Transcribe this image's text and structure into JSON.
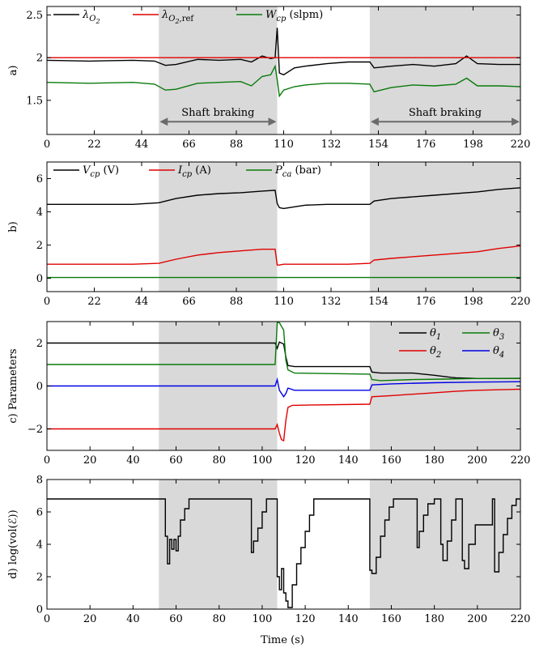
{
  "figure": {
    "xlabel": "Time (s)",
    "shaded_intervals": [
      [
        52,
        107
      ],
      [
        150,
        220
      ]
    ],
    "colors": {
      "black": "#000000",
      "red": "#e00000",
      "green": "#0a7a0a",
      "blue": "#0000e6",
      "shade": "#d9d9d9"
    }
  },
  "chart_data": [
    {
      "type": "line",
      "panel_label": "a)",
      "ylim": [
        1.1,
        2.6
      ],
      "yticks": [
        "1.5",
        "2",
        "2.5"
      ],
      "yticks_values": [
        1.5,
        2,
        2.5
      ],
      "xlim": [
        0,
        220
      ],
      "xticks": [
        "0",
        "22",
        "44",
        "66",
        "88",
        "110",
        "132",
        "154",
        "176",
        "198",
        "220"
      ],
      "legend_pos": "top-left",
      "series": [
        {
          "name": "λ_O2",
          "legend_main": "λ",
          "legend_sub": "O",
          "legend_subsub": "2",
          "color": "#000000",
          "x": [
            0,
            20,
            40,
            50,
            55,
            60,
            70,
            80,
            90,
            95,
            100,
            104,
            106,
            107,
            108,
            110,
            115,
            120,
            130,
            140,
            150,
            152,
            160,
            170,
            180,
            190,
            195,
            200,
            210,
            220
          ],
          "y": [
            1.97,
            1.96,
            1.97,
            1.96,
            1.91,
            1.92,
            1.98,
            1.97,
            1.98,
            1.95,
            2.02,
            1.99,
            2.0,
            2.35,
            1.82,
            1.8,
            1.88,
            1.9,
            1.93,
            1.95,
            1.95,
            1.88,
            1.9,
            1.92,
            1.9,
            1.93,
            2.02,
            1.93,
            1.92,
            1.92
          ]
        },
        {
          "name": "λ_O2,ref",
          "legend_main": "λ",
          "legend_sub": "O",
          "legend_subsub": "2",
          "legend_subtail": ",ref",
          "color": "#e00000",
          "x": [
            0,
            220
          ],
          "y": [
            2.0,
            2.0
          ]
        },
        {
          "name": "W_cp (slpm)",
          "legend_main": "W",
          "legend_sub": "cp",
          "legend_tail": " (slpm)",
          "color": "#0a7a0a",
          "x": [
            0,
            20,
            40,
            50,
            55,
            60,
            70,
            80,
            90,
            95,
            100,
            104,
            106,
            107,
            108,
            110,
            115,
            120,
            130,
            140,
            150,
            152,
            160,
            170,
            180,
            190,
            195,
            200,
            210,
            220
          ],
          "y": [
            1.71,
            1.7,
            1.71,
            1.69,
            1.62,
            1.63,
            1.7,
            1.71,
            1.72,
            1.67,
            1.78,
            1.8,
            1.9,
            1.74,
            1.55,
            1.62,
            1.66,
            1.68,
            1.7,
            1.7,
            1.69,
            1.6,
            1.65,
            1.68,
            1.67,
            1.69,
            1.76,
            1.67,
            1.67,
            1.66
          ]
        }
      ],
      "annotations": [
        {
          "text": "Shaft braking",
          "x0": 52,
          "x1": 107,
          "y": 1.25
        },
        {
          "text": "Shaft braking",
          "x0": 150,
          "x1": 220,
          "y": 1.25
        }
      ]
    },
    {
      "type": "line",
      "panel_label": "b)",
      "ylim": [
        -0.8,
        7.0
      ],
      "yticks": [
        "0",
        "2",
        "4",
        "6"
      ],
      "yticks_values": [
        0,
        2,
        4,
        6
      ],
      "xlim": [
        0,
        220
      ],
      "xticks": [
        "0",
        "22",
        "44",
        "66",
        "88",
        "110",
        "132",
        "154",
        "176",
        "198",
        "220"
      ],
      "legend_pos": "top-left",
      "series": [
        {
          "name": "V_cp (V)",
          "legend_main": "V",
          "legend_sub": "cp",
          "legend_tail": " (V)",
          "color": "#000000",
          "x": [
            0,
            40,
            52,
            60,
            70,
            80,
            90,
            100,
            106,
            107,
            108,
            110,
            120,
            130,
            140,
            150,
            152,
            160,
            180,
            200,
            210,
            220
          ],
          "y": [
            4.45,
            4.45,
            4.55,
            4.8,
            5.0,
            5.1,
            5.15,
            5.25,
            5.3,
            4.5,
            4.25,
            4.2,
            4.4,
            4.45,
            4.45,
            4.45,
            4.65,
            4.8,
            5.0,
            5.2,
            5.35,
            5.45
          ]
        },
        {
          "name": "I_cp (A)",
          "legend_main": "I",
          "legend_sub": "cp",
          "legend_tail": " (A)",
          "color": "#e00000",
          "x": [
            0,
            40,
            52,
            60,
            70,
            80,
            90,
            100,
            106,
            107,
            108,
            110,
            120,
            140,
            150,
            152,
            160,
            180,
            200,
            210,
            220
          ],
          "y": [
            0.85,
            0.85,
            0.9,
            1.15,
            1.4,
            1.55,
            1.65,
            1.75,
            1.75,
            0.8,
            0.8,
            0.85,
            0.85,
            0.85,
            0.9,
            1.1,
            1.2,
            1.4,
            1.6,
            1.8,
            1.95
          ]
        },
        {
          "name": "P_ca (bar)",
          "legend_main": "P",
          "legend_sub": "ca",
          "legend_tail": " (bar)",
          "color": "#0a7a0a",
          "x": [
            0,
            220
          ],
          "y": [
            0.05,
            0.05
          ]
        }
      ]
    },
    {
      "type": "line",
      "panel_label": "c)",
      "ylabel": "Parameters",
      "ylim": [
        -3.0,
        3.0
      ],
      "yticks": [
        "−2",
        "0",
        "2"
      ],
      "yticks_values": [
        -2,
        0,
        2
      ],
      "xlim": [
        0,
        220
      ],
      "xticks": [
        "0",
        "20",
        "40",
        "60",
        "80",
        "100",
        "120",
        "140",
        "160",
        "180",
        "200",
        "220"
      ],
      "legend_pos": "top-right",
      "series": [
        {
          "name": "θ1",
          "legend_main": "θ",
          "legend_sub": "1",
          "color": "#000000",
          "x": [
            0,
            106,
            107,
            108,
            110,
            111,
            112,
            115,
            150,
            151,
            155,
            170,
            180,
            188,
            190,
            200,
            220
          ],
          "y": [
            2.0,
            2.0,
            1.75,
            2.05,
            1.95,
            1.35,
            0.95,
            0.9,
            0.9,
            0.65,
            0.6,
            0.6,
            0.5,
            0.4,
            0.38,
            0.35,
            0.35
          ]
        },
        {
          "name": "θ3",
          "legend_main": "θ",
          "legend_sub": "3",
          "color": "#0a7a0a",
          "x": [
            0,
            106,
            107,
            108,
            110,
            111,
            112,
            115,
            150,
            151,
            155,
            170,
            185,
            200,
            220
          ],
          "y": [
            1.0,
            1.0,
            2.95,
            2.95,
            2.6,
            1.2,
            0.75,
            0.6,
            0.55,
            0.3,
            0.25,
            0.3,
            0.32,
            0.35,
            0.36
          ]
        },
        {
          "name": "θ2",
          "legend_main": "θ",
          "legend_sub": "2",
          "color": "#e00000",
          "x": [
            0,
            106,
            107,
            108,
            109,
            110,
            111,
            112,
            114,
            150,
            151,
            160,
            175,
            190,
            200,
            220
          ],
          "y": [
            -2.0,
            -2.0,
            -1.8,
            -2.2,
            -2.5,
            -2.55,
            -1.6,
            -1.0,
            -0.9,
            -0.85,
            -0.5,
            -0.45,
            -0.35,
            -0.25,
            -0.2,
            -0.15
          ]
        },
        {
          "name": "θ4",
          "legend_main": "θ",
          "legend_sub": "4",
          "color": "#0000e6",
          "x": [
            0,
            106,
            107,
            108,
            110,
            111,
            112,
            115,
            150,
            151,
            160,
            180,
            200,
            220
          ],
          "y": [
            0.0,
            0.0,
            0.3,
            -0.2,
            -0.5,
            -0.35,
            -0.1,
            -0.2,
            -0.2,
            0.05,
            0.1,
            0.15,
            0.18,
            0.2
          ]
        }
      ]
    },
    {
      "type": "line",
      "panel_label": "d)",
      "ylabel": "log(vol(ℰ))",
      "ylim": [
        0,
        8
      ],
      "yticks": [
        "0",
        "2",
        "4",
        "6",
        "8"
      ],
      "yticks_values": [
        0,
        2,
        4,
        6,
        8
      ],
      "xlim": [
        0,
        220
      ],
      "xticks": [
        "0",
        "20",
        "40",
        "60",
        "80",
        "100",
        "120",
        "140",
        "160",
        "180",
        "200",
        "220"
      ],
      "xlabel": "Time (s)",
      "series": [
        {
          "name": "log(vol(ℰ))",
          "color": "#000000",
          "x": [
            0,
            55,
            55,
            56,
            56,
            57,
            57,
            58,
            58,
            59,
            59,
            60,
            60,
            61,
            61,
            62,
            62,
            64,
            64,
            66,
            66,
            95,
            95,
            96,
            96,
            98,
            98,
            100,
            100,
            102,
            102,
            107,
            107,
            108,
            108,
            109,
            109,
            110,
            110,
            111,
            111,
            112,
            112,
            114,
            114,
            116,
            116,
            118,
            118,
            120,
            120,
            122,
            122,
            124,
            124,
            150,
            150,
            151,
            151,
            153,
            153,
            155,
            155,
            157,
            157,
            159,
            159,
            161,
            161,
            172,
            172,
            173,
            173,
            175,
            175,
            177,
            177,
            180,
            180,
            183,
            183,
            184,
            184,
            186,
            186,
            188,
            188,
            190,
            190,
            193,
            193,
            194,
            194,
            196,
            196,
            199,
            199,
            207,
            207,
            208,
            208,
            210,
            210,
            212,
            212,
            214,
            214,
            216,
            216,
            218,
            218,
            220
          ],
          "y": [
            6.8,
            6.8,
            4.5,
            4.5,
            2.8,
            2.8,
            4.3,
            4.3,
            3.7,
            3.7,
            4.3,
            4.3,
            3.6,
            3.6,
            4.5,
            4.5,
            5.5,
            5.5,
            6.2,
            6.2,
            6.8,
            6.8,
            3.5,
            3.5,
            4.2,
            4.2,
            5.0,
            5.0,
            6.0,
            6.0,
            6.8,
            6.8,
            2.0,
            2.0,
            1.2,
            1.2,
            2.5,
            2.5,
            1.0,
            1.0,
            0.5,
            0.5,
            0.1,
            0.1,
            1.5,
            1.5,
            2.8,
            2.8,
            3.8,
            3.8,
            4.8,
            4.8,
            5.8,
            5.8,
            6.8,
            6.8,
            2.4,
            2.4,
            2.2,
            2.2,
            3.2,
            3.2,
            4.5,
            4.5,
            5.5,
            5.5,
            6.3,
            6.3,
            6.8,
            6.8,
            3.8,
            3.8,
            4.8,
            4.8,
            5.8,
            5.8,
            6.5,
            6.5,
            6.8,
            6.8,
            4.0,
            4.0,
            3.0,
            3.0,
            4.2,
            4.2,
            5.5,
            5.5,
            6.8,
            6.8,
            3.0,
            3.0,
            2.5,
            2.5,
            4.0,
            4.0,
            5.2,
            5.2,
            6.8,
            6.8,
            2.3,
            2.3,
            3.5,
            3.5,
            4.6,
            4.6,
            5.6,
            5.6,
            6.4,
            6.4,
            6.8,
            6.8
          ]
        }
      ]
    }
  ]
}
